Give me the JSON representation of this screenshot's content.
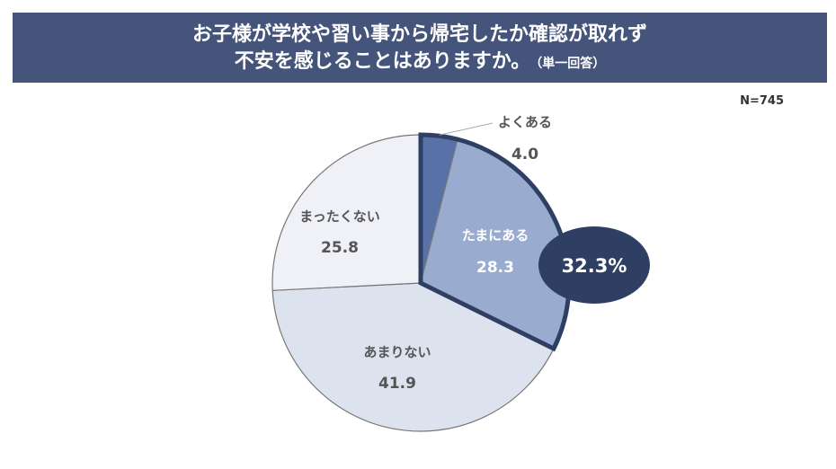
{
  "header": {
    "title_line1": "お子様が学校や習い事から帰宅したか確認が取れず",
    "title_line2": "不安を感じることはありますか。",
    "title_note": "（単一回答）"
  },
  "sample_size": "N=745",
  "callout": {
    "text": "32.3%",
    "color": "#2f3f63"
  },
  "chart_data": {
    "type": "pie",
    "title": "お子様が学校や習い事から帰宅したか確認が取れず不安を感じることはありますか。",
    "start": "12 o'clock, clockwise",
    "slices": [
      {
        "label": "よくある",
        "value": 4.0,
        "value_text": "4.0",
        "color": "#5872a8"
      },
      {
        "label": "たまにある",
        "value": 28.3,
        "value_text": "28.3",
        "color": "#99acd0"
      },
      {
        "label": "あまりない",
        "value": 41.9,
        "value_text": "41.9",
        "color": "#dde3ee"
      },
      {
        "label": "まったくない",
        "value": 25.8,
        "value_text": "25.8",
        "color": "#eff1f7"
      }
    ],
    "highlight_group": [
      "よくある",
      "たまにある"
    ],
    "highlight_total": 32.3,
    "highlight_outline_color": "#2f3f63"
  }
}
